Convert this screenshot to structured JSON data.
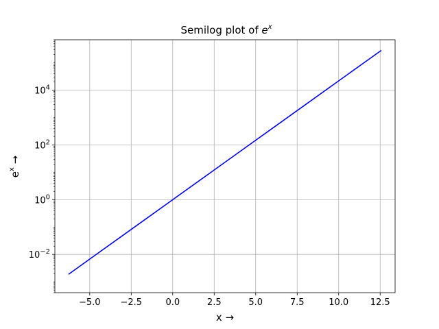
{
  "chart_data": {
    "type": "line",
    "title": {
      "base": "Semilog plot of ",
      "italic": "e",
      "sup": "x"
    },
    "xlabel": "x →",
    "ylabel": {
      "base": "e",
      "sup": "x",
      "suffix": " →"
    },
    "x_scale": "linear",
    "y_scale": "log",
    "xlim": [
      -7.1,
      13.4
    ],
    "ylim": [
      0.0004,
      700000
    ],
    "grid": true,
    "x_ticks": [
      {
        "value": -5.0,
        "label": "−5.0"
      },
      {
        "value": -2.5,
        "label": "−2.5"
      },
      {
        "value": 0.0,
        "label": "0.0"
      },
      {
        "value": 2.5,
        "label": "2.5"
      },
      {
        "value": 5.0,
        "label": "5.0"
      },
      {
        "value": 7.5,
        "label": "7.5"
      },
      {
        "value": 10.0,
        "label": "10.0"
      },
      {
        "value": 12.5,
        "label": "12.5"
      }
    ],
    "y_ticks": [
      {
        "value": 0.01,
        "base": "10",
        "exp": "−2"
      },
      {
        "value": 1,
        "base": "10",
        "exp": "0"
      },
      {
        "value": 100,
        "base": "10",
        "exp": "2"
      },
      {
        "value": 10000,
        "base": "10",
        "exp": "4"
      }
    ],
    "series": [
      {
        "color": "#0000ff",
        "x": [
          -6.28,
          -5.0,
          -2.5,
          0.0,
          2.5,
          5.0,
          7.5,
          10.0,
          12.57
        ],
        "y": [
          0.00187,
          0.00674,
          0.0821,
          1.0,
          12.18,
          148.4,
          1808.0,
          22026.0,
          286751.0
        ]
      }
    ]
  }
}
